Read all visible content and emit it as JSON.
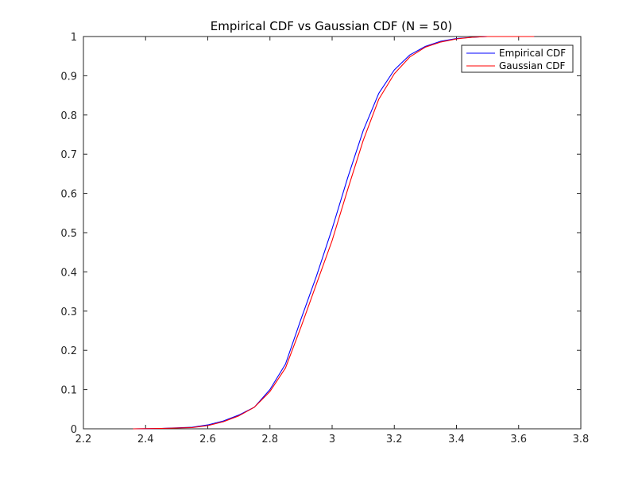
{
  "chart_data": {
    "type": "line",
    "title": "Empirical CDF vs Gaussian CDF (N = 50)",
    "xlabel": "",
    "ylabel": "",
    "xlim": [
      2.2,
      3.8
    ],
    "ylim": [
      0,
      1
    ],
    "xticks": [
      2.2,
      2.4,
      2.6,
      2.8,
      3,
      3.2,
      3.4,
      3.6,
      3.8
    ],
    "xtick_labels": [
      "2.2",
      "2.4",
      "2.6",
      "2.8",
      "3",
      "3.2",
      "3.4",
      "3.6",
      "3.8"
    ],
    "yticks": [
      0,
      0.1,
      0.2,
      0.3,
      0.4,
      0.5,
      0.6,
      0.7,
      0.8,
      0.9,
      1
    ],
    "ytick_labels": [
      "0",
      "0.1",
      "0.2",
      "0.3",
      "0.4",
      "0.5",
      "0.6",
      "0.7",
      "0.8",
      "0.9",
      "1"
    ],
    "grid": false,
    "legend_position": "top-right",
    "series": [
      {
        "name": "Empirical CDF",
        "color": "#0000ff",
        "x": [
          2.36,
          2.45,
          2.55,
          2.6,
          2.65,
          2.7,
          2.75,
          2.8,
          2.85,
          2.9,
          2.95,
          3.0,
          3.05,
          3.1,
          3.15,
          3.2,
          3.25,
          3.3,
          3.35,
          3.4,
          3.45,
          3.5,
          3.6,
          3.65
        ],
        "y": [
          0.0,
          0.001,
          0.004,
          0.01,
          0.02,
          0.035,
          0.055,
          0.1,
          0.165,
          0.28,
          0.39,
          0.51,
          0.64,
          0.76,
          0.855,
          0.915,
          0.953,
          0.975,
          0.988,
          0.995,
          0.998,
          1.0,
          1.0,
          1.0
        ]
      },
      {
        "name": "Gaussian CDF",
        "color": "#ff0000",
        "x": [
          2.36,
          2.45,
          2.55,
          2.6,
          2.65,
          2.7,
          2.75,
          2.8,
          2.85,
          2.9,
          2.95,
          3.0,
          3.05,
          3.1,
          3.15,
          3.2,
          3.25,
          3.3,
          3.35,
          3.4,
          3.45,
          3.5,
          3.6,
          3.65
        ],
        "y": [
          0.0,
          0.001,
          0.003,
          0.008,
          0.018,
          0.033,
          0.055,
          0.095,
          0.155,
          0.26,
          0.37,
          0.48,
          0.61,
          0.735,
          0.84,
          0.905,
          0.948,
          0.973,
          0.986,
          0.994,
          0.998,
          1.0,
          1.0,
          1.0
        ]
      }
    ]
  }
}
